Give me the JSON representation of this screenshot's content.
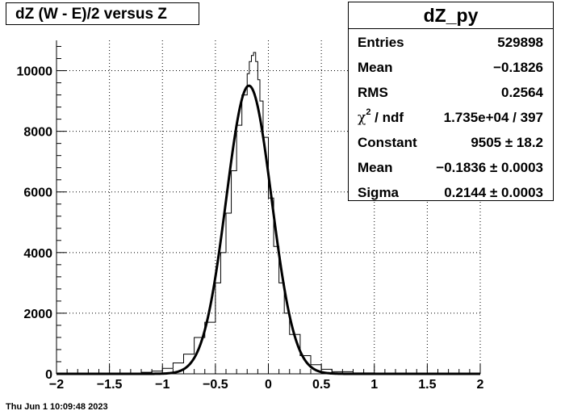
{
  "chart_data": {
    "type": "line",
    "title": "dZ (W - E)/2 versus Z",
    "xlim": [
      -2,
      2
    ],
    "ylim": [
      0,
      11000
    ],
    "x_ticks": [
      -2,
      -1.5,
      -1,
      -0.5,
      0,
      0.5,
      1,
      1.5,
      2
    ],
    "x_tick_labels": [
      "−2",
      "−1.5",
      "−1",
      "−0.5",
      "0",
      "0.5",
      "1",
      "1.5",
      "2"
    ],
    "y_ticks": [
      0,
      2000,
      4000,
      6000,
      8000,
      10000
    ],
    "y_tick_labels": [
      "0",
      "2000",
      "4000",
      "6000",
      "8000",
      "10000"
    ],
    "grid": true,
    "histogram": {
      "x": [
        -2.0,
        -1.8,
        -1.6,
        -1.4,
        -1.2,
        -1.1,
        -1.0,
        -0.9,
        -0.8,
        -0.7,
        -0.6,
        -0.5,
        -0.45,
        -0.4,
        -0.35,
        -0.3,
        -0.25,
        -0.2,
        -0.18,
        -0.16,
        -0.14,
        -0.12,
        -0.1,
        -0.08,
        -0.05,
        0.0,
        0.05,
        0.1,
        0.15,
        0.2,
        0.3,
        0.4,
        0.5,
        0.6,
        0.8,
        1.0,
        1.2,
        1.5,
        2.0
      ],
      "y": [
        0,
        5,
        10,
        20,
        50,
        90,
        180,
        360,
        650,
        1200,
        1700,
        3000,
        4000,
        5300,
        6700,
        8200,
        9200,
        9900,
        10300,
        10500,
        10600,
        10300,
        9700,
        9000,
        7800,
        5800,
        4200,
        3000,
        2000,
        1300,
        600,
        300,
        150,
        70,
        30,
        15,
        8,
        4,
        2
      ]
    },
    "fit": {
      "function": "gaus",
      "constant": 9505,
      "mean": -0.1836,
      "sigma": 0.2144
    }
  },
  "stats": {
    "title": "dZ_py",
    "rows": [
      {
        "label": "Entries",
        "value": "529898"
      },
      {
        "label": "Mean",
        "value": "−0.1826"
      },
      {
        "label": "RMS",
        "value": "0.2564"
      },
      {
        "label_prefix": "χ",
        "label_sup": "2",
        "label_suffix": " / ndf",
        "value": "1.735e+04 / 397"
      },
      {
        "label": "Constant",
        "value": "9505 ± 18.2"
      },
      {
        "label": "Mean",
        "value": "−0.1836 ± 0.0003"
      },
      {
        "label": "Sigma",
        "value": "0.2144 ± 0.0003"
      }
    ]
  },
  "timestamp": "Thu Jun  1 10:09:48 2023"
}
